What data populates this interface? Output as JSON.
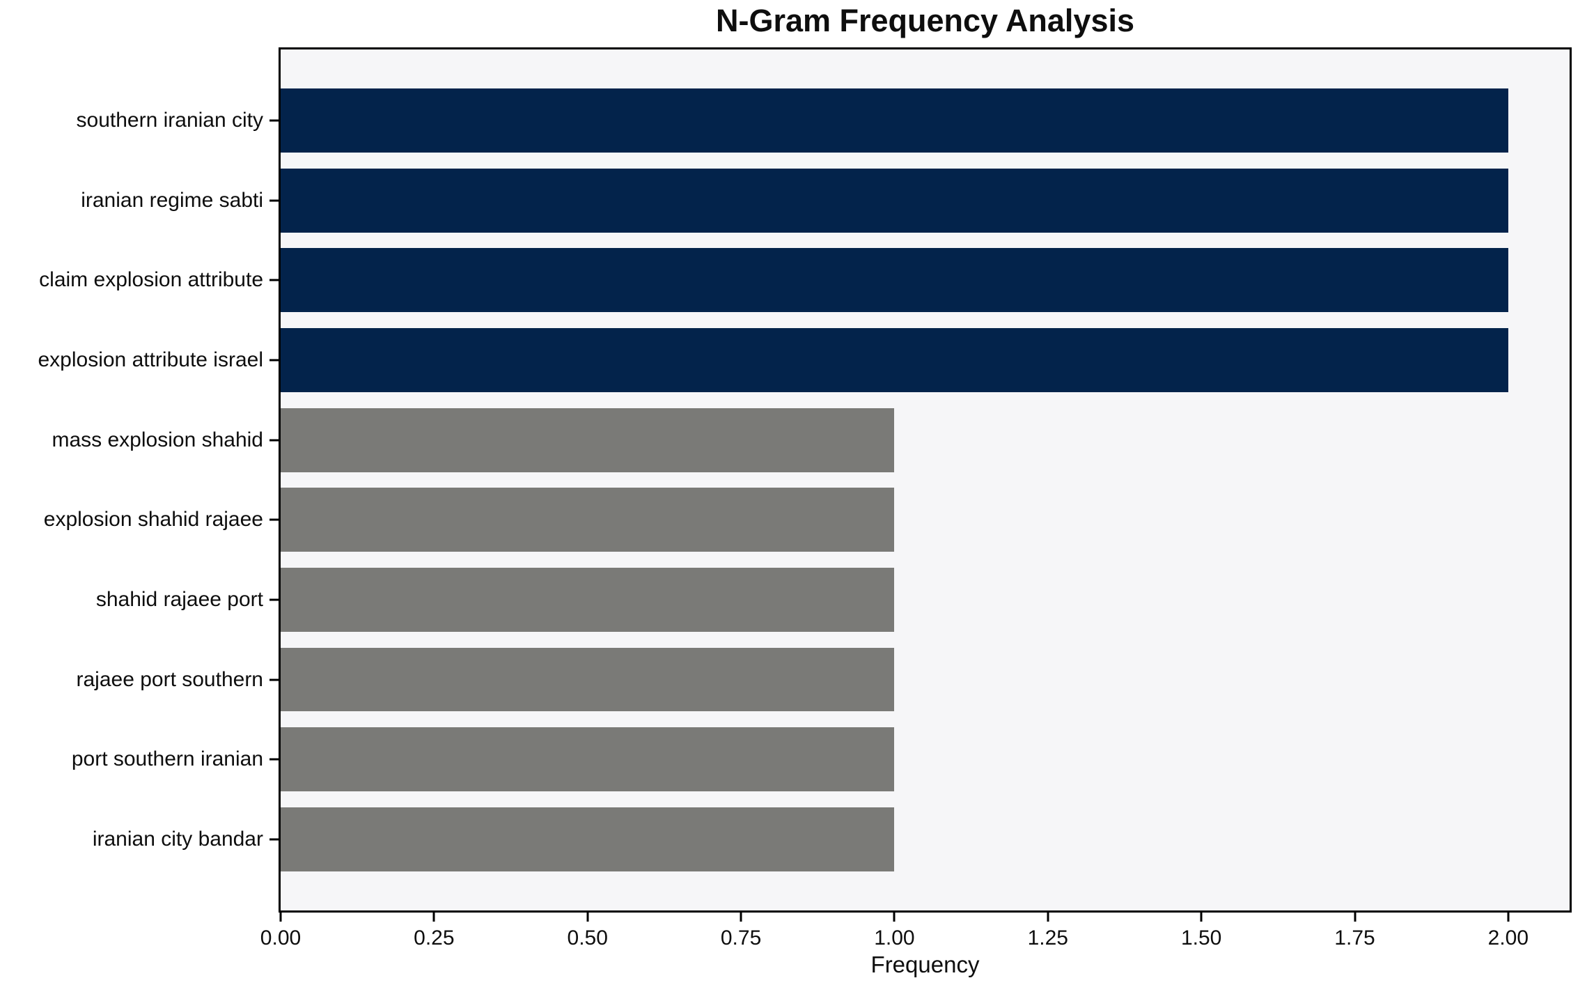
{
  "figure": {
    "background": "#ffffff",
    "plot_background": "#f6f6f8",
    "spine_color": "#000000",
    "text_color": "#0e0e0e"
  },
  "chart_data": {
    "type": "bar",
    "orientation": "horizontal",
    "title": "N-Gram Frequency Analysis",
    "xlabel": "Frequency",
    "ylabel": "",
    "categories": [
      "southern iranian city",
      "iranian regime sabti",
      "claim explosion attribute",
      "explosion attribute israel",
      "mass explosion shahid",
      "explosion shahid rajaee",
      "shahid rajaee port",
      "rajaee port southern",
      "port southern iranian",
      "iranian city bandar"
    ],
    "values": [
      2,
      2,
      2,
      2,
      1,
      1,
      1,
      1,
      1,
      1
    ],
    "bar_colors": [
      "#03234b",
      "#03234b",
      "#03234b",
      "#03234b",
      "#7a7a77",
      "#7a7a77",
      "#7a7a77",
      "#7a7a77",
      "#7a7a77",
      "#7a7a77"
    ],
    "highlight_color": "#03234b",
    "default_color": "#7a7a77",
    "xlim": [
      0,
      2.1
    ],
    "xticks": [
      0,
      0.25,
      0.5,
      0.75,
      1.0,
      1.25,
      1.5,
      1.75,
      2.0
    ],
    "xtick_labels": [
      "0.00",
      "0.25",
      "0.50",
      "0.75",
      "1.00",
      "1.25",
      "1.50",
      "1.75",
      "2.00"
    ],
    "bar_height_fraction": 0.8,
    "grid": false,
    "legend": false,
    "value_labels": false
  }
}
